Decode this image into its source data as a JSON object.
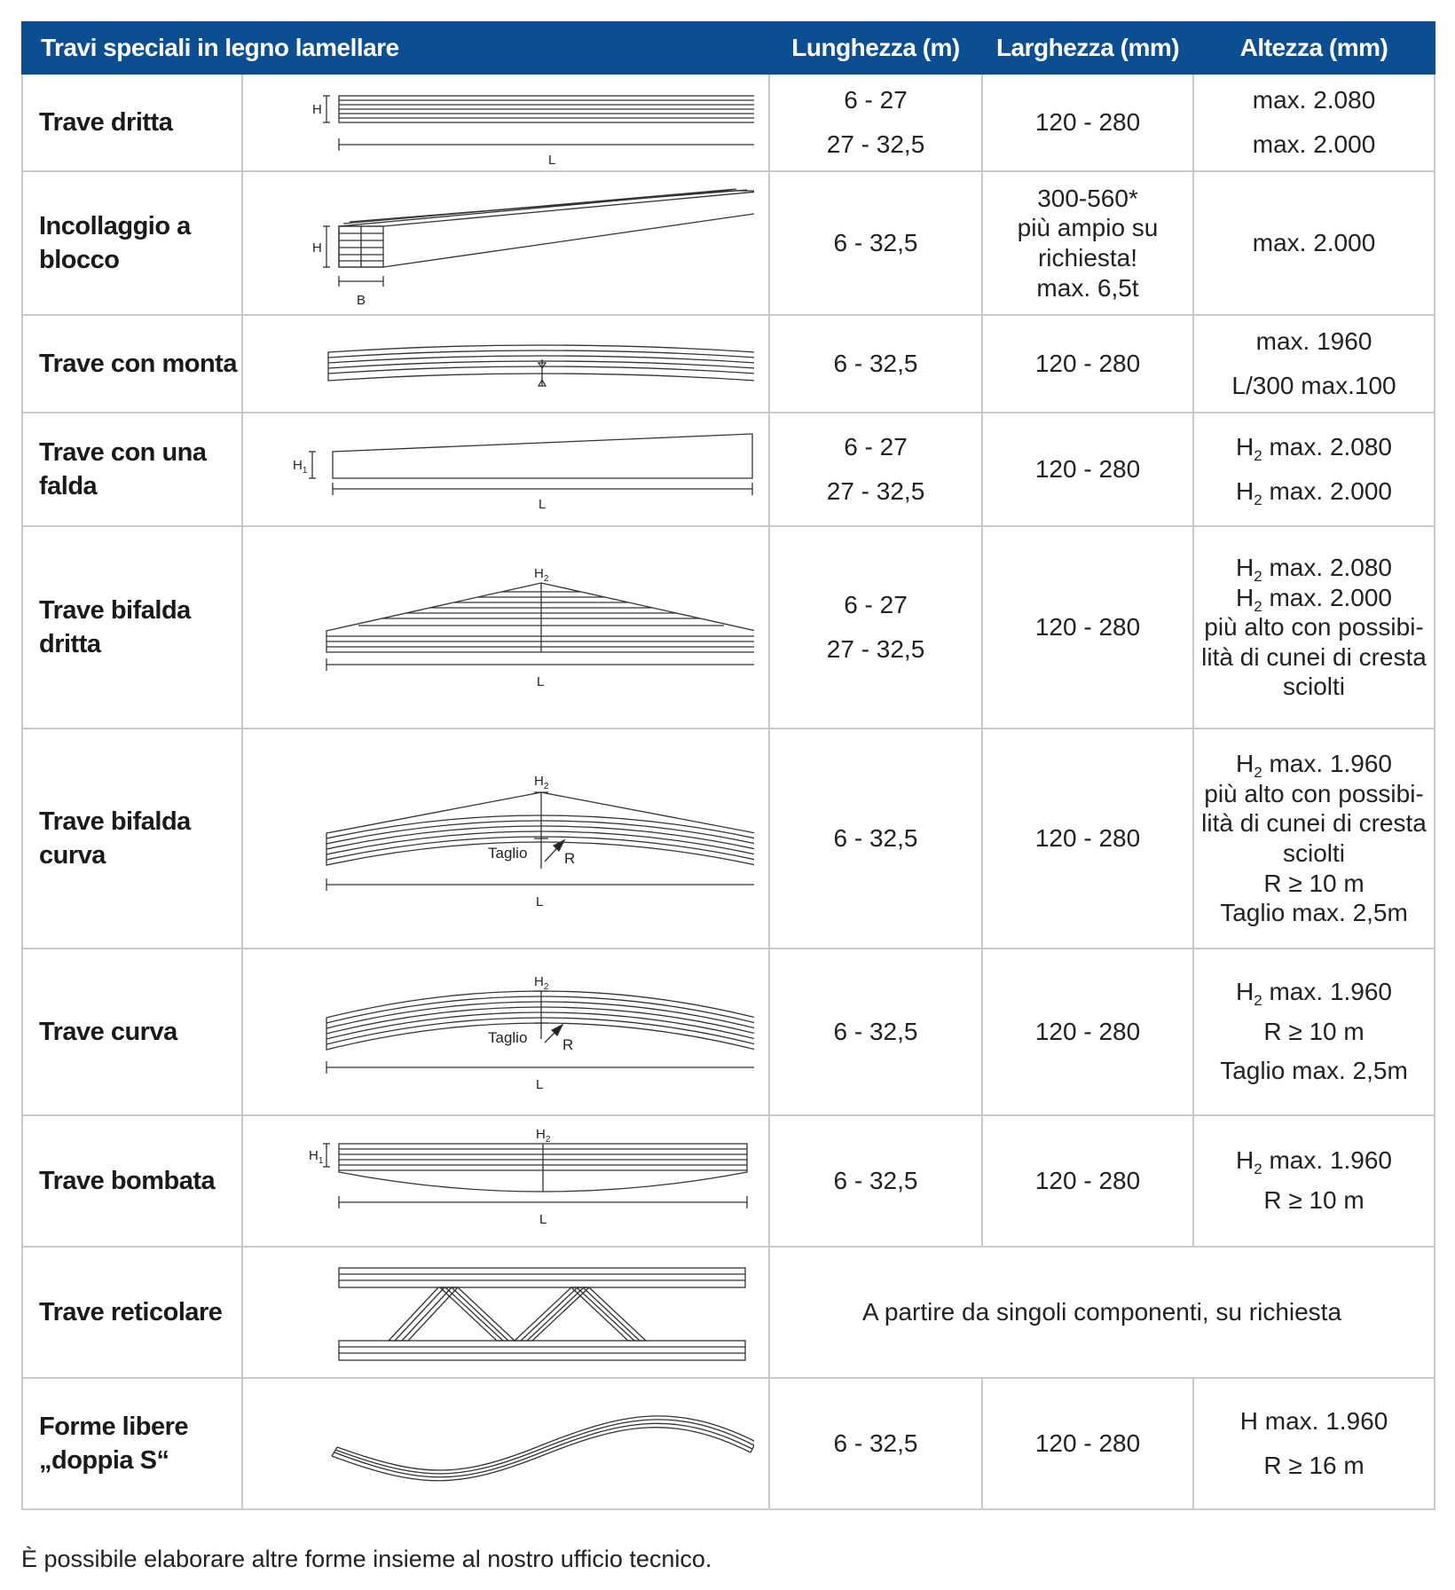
{
  "header": {
    "title": "Travi speciali in legno lamellare",
    "col_length": "Lunghezza (m)",
    "col_width": "Larghezza (mm)",
    "col_height": "Altezza (mm)"
  },
  "rows": [
    {
      "name": "Trave dritta",
      "length": [
        "6 - 27",
        "27 - 32,5"
      ],
      "width": [
        "120 - 280"
      ],
      "height": [
        "max. 2.080",
        "max. 2.000"
      ]
    },
    {
      "name": "Incollaggio a blocco",
      "length": [
        "6 - 32,5"
      ],
      "width": [
        "300-560*",
        "più ampio su",
        "richiesta!",
        "max. 6,5t"
      ],
      "height": [
        "max. 2.000"
      ]
    },
    {
      "name": "Trave con monta",
      "length": [
        "6 - 32,5"
      ],
      "width": [
        "120 - 280"
      ],
      "height": [
        "max. 1960",
        "L/300 max.100"
      ]
    },
    {
      "name": "Trave con una falda",
      "length": [
        "6 - 27",
        "27 - 32,5"
      ],
      "width": [
        "120 - 280"
      ],
      "height": [
        "max. 2.080",
        "max. 2.000"
      ]
    },
    {
      "name": "Trave bifalda dritta",
      "length": [
        "6 - 27",
        "27 - 32,5"
      ],
      "width": [
        "120 - 280"
      ],
      "height": [
        "max. 2.080",
        "max. 2.000",
        "più alto con possibi-",
        "lità di cunei di cresta",
        "sciolti"
      ]
    },
    {
      "name": "Trave bifalda curva",
      "length": [
        "6 - 32,5"
      ],
      "width": [
        "120 - 280"
      ],
      "height": [
        "max. 1.960",
        "più alto con possibi-",
        "lità di cunei di cresta",
        "sciolti",
        "R ≥ 10 m",
        "Taglio max. 2,5m"
      ]
    },
    {
      "name": "Trave curva",
      "length": [
        "6 - 32,5"
      ],
      "width": [
        "120 - 280"
      ],
      "height": [
        "max. 1.960",
        "R ≥ 10 m",
        "Taglio max. 2,5m"
      ]
    },
    {
      "name": "Trave bombata",
      "length": [
        "6 - 32,5"
      ],
      "width": [
        "120 - 280"
      ],
      "height": [
        "max. 1.960",
        "R ≥ 10 m"
      ]
    },
    {
      "name": "Trave reticolare",
      "merged": "A partire da singoli componenti, su richiesta"
    },
    {
      "name": "Forme libere „doppia S“",
      "length": [
        "6 - 32,5"
      ],
      "width": [
        "120 - 280"
      ],
      "height": [
        "H max. 1.960",
        "R ≥ 16 m"
      ]
    }
  ],
  "labels": {
    "H": "H",
    "L": "L",
    "B": "B",
    "R": "R",
    "taglio": "Taglio",
    "h1_base": "H",
    "h1_sub": "1",
    "h2_base": "H",
    "h2_sub": "2"
  },
  "footnote": "È possibile elaborare altre forme insieme al nostro ufficio tecnico."
}
